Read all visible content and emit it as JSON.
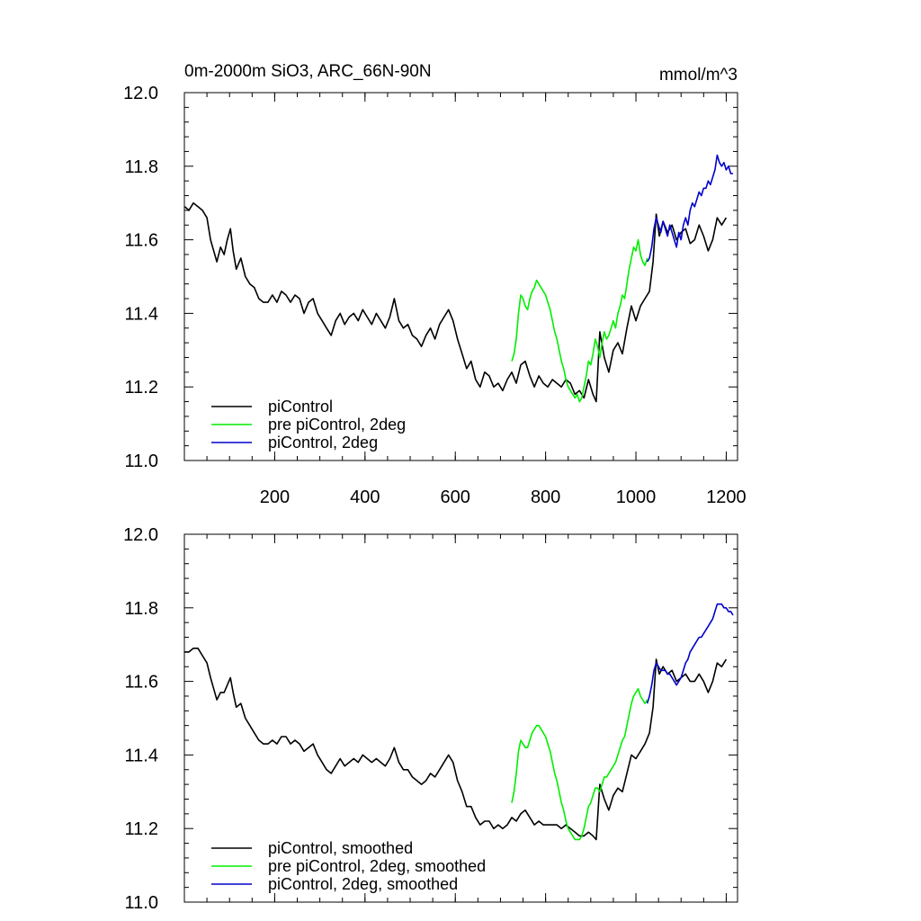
{
  "chart_data": [
    {
      "type": "line",
      "title": "0m-2000m SiO3, ARC_66N-90N",
      "units": "mmol/m^3",
      "xlabel": "",
      "ylabel": "",
      "xlim": [
        0,
        1225
      ],
      "ylim": [
        11.0,
        12.0
      ],
      "xticks": [
        200,
        400,
        600,
        800,
        1000,
        1200
      ],
      "xtick_labels": [
        "200",
        "400",
        "600",
        "800",
        "1000",
        "1200"
      ],
      "yticks": [
        11.0,
        11.2,
        11.4,
        11.6,
        11.8,
        12.0
      ],
      "ytick_labels": [
        "11.0",
        "11.2",
        "11.4",
        "11.6",
        "11.8",
        "12.0"
      ],
      "legend_position": "bottom-left",
      "series": [
        {
          "name": "piControl",
          "color": "#000000",
          "x": [
            1,
            10,
            20,
            30,
            40,
            50,
            58,
            65,
            72,
            80,
            88,
            95,
            102,
            108,
            115,
            125,
            135,
            145,
            155,
            165,
            175,
            185,
            195,
            205,
            215,
            225,
            235,
            245,
            255,
            265,
            275,
            285,
            295,
            305,
            315,
            325,
            335,
            345,
            355,
            365,
            375,
            385,
            395,
            405,
            415,
            425,
            435,
            445,
            455,
            465,
            475,
            485,
            495,
            505,
            515,
            525,
            535,
            545,
            555,
            565,
            575,
            585,
            595,
            605,
            615,
            625,
            635,
            645,
            655,
            665,
            675,
            685,
            695,
            705,
            715,
            725,
            735,
            745,
            755,
            765,
            775,
            785,
            795,
            805,
            815,
            825,
            835,
            845,
            855,
            865,
            875,
            885,
            895,
            905,
            912,
            920,
            930,
            940,
            950,
            960,
            970,
            980,
            990,
            1000,
            1010,
            1020,
            1030,
            1038,
            1045,
            1052,
            1060,
            1070,
            1080,
            1090,
            1100,
            1110,
            1120,
            1130,
            1140,
            1150,
            1160,
            1170,
            1180,
            1190,
            1200
          ],
          "values": [
            11.69,
            11.68,
            11.7,
            11.69,
            11.68,
            11.66,
            11.6,
            11.57,
            11.54,
            11.58,
            11.56,
            11.6,
            11.63,
            11.57,
            11.52,
            11.55,
            11.5,
            11.48,
            11.47,
            11.44,
            11.43,
            11.43,
            11.45,
            11.43,
            11.46,
            11.45,
            11.43,
            11.45,
            11.44,
            11.4,
            11.43,
            11.44,
            11.4,
            11.38,
            11.36,
            11.34,
            11.38,
            11.4,
            11.37,
            11.39,
            11.4,
            11.38,
            11.41,
            11.39,
            11.37,
            11.4,
            11.38,
            11.36,
            11.39,
            11.44,
            11.38,
            11.36,
            11.37,
            11.34,
            11.33,
            11.31,
            11.34,
            11.36,
            11.33,
            11.37,
            11.39,
            11.41,
            11.38,
            11.33,
            11.29,
            11.25,
            11.27,
            11.22,
            11.2,
            11.24,
            11.23,
            11.2,
            11.21,
            11.19,
            11.22,
            11.24,
            11.21,
            11.26,
            11.27,
            11.23,
            11.2,
            11.23,
            11.21,
            11.2,
            11.22,
            11.21,
            11.2,
            11.22,
            11.21,
            11.18,
            11.19,
            11.17,
            11.22,
            11.18,
            11.16,
            11.35,
            11.28,
            11.24,
            11.3,
            11.32,
            11.29,
            11.36,
            11.42,
            11.38,
            11.42,
            11.44,
            11.46,
            11.54,
            11.67,
            11.61,
            11.65,
            11.62,
            11.64,
            11.6,
            11.62,
            11.63,
            11.59,
            11.6,
            11.64,
            11.61,
            11.57,
            11.6,
            11.66,
            11.64,
            11.66
          ]
        },
        {
          "name": "pre piControl, 2deg",
          "color": "#00ee00",
          "x": [
            725,
            730,
            735,
            740,
            745,
            750,
            755,
            760,
            765,
            770,
            775,
            780,
            785,
            790,
            795,
            800,
            805,
            810,
            815,
            820,
            825,
            830,
            835,
            840,
            845,
            850,
            855,
            860,
            865,
            870,
            875,
            880,
            885,
            890,
            895,
            900,
            905,
            910,
            915,
            920,
            925,
            930,
            935,
            940,
            945,
            950,
            955,
            960,
            965,
            970,
            975,
            980,
            985,
            990,
            995,
            1000,
            1005,
            1010,
            1015,
            1020,
            1025
          ],
          "values": [
            11.27,
            11.29,
            11.33,
            11.4,
            11.45,
            11.44,
            11.42,
            11.41,
            11.44,
            11.46,
            11.47,
            11.49,
            11.48,
            11.47,
            11.46,
            11.45,
            11.43,
            11.41,
            11.38,
            11.35,
            11.33,
            11.3,
            11.27,
            11.25,
            11.22,
            11.2,
            11.19,
            11.18,
            11.17,
            11.18,
            11.16,
            11.17,
            11.2,
            11.23,
            11.27,
            11.26,
            11.29,
            11.33,
            11.31,
            11.28,
            11.32,
            11.35,
            11.33,
            11.34,
            11.36,
            11.38,
            11.36,
            11.4,
            11.42,
            11.45,
            11.44,
            11.48,
            11.52,
            11.55,
            11.58,
            11.57,
            11.6,
            11.56,
            11.54,
            11.53,
            11.55
          ]
        },
        {
          "name": "piControl, 2deg",
          "color": "#0000cc",
          "x": [
            1025,
            1030,
            1035,
            1040,
            1045,
            1050,
            1055,
            1060,
            1065,
            1070,
            1075,
            1080,
            1085,
            1090,
            1095,
            1100,
            1105,
            1110,
            1115,
            1120,
            1125,
            1130,
            1135,
            1140,
            1145,
            1150,
            1155,
            1160,
            1165,
            1170,
            1175,
            1180,
            1185,
            1190,
            1195,
            1200,
            1205,
            1210,
            1215
          ],
          "values": [
            11.54,
            11.55,
            11.58,
            11.63,
            11.66,
            11.64,
            11.62,
            11.65,
            11.63,
            11.61,
            11.64,
            11.62,
            11.6,
            11.58,
            11.62,
            11.6,
            11.64,
            11.66,
            11.64,
            11.68,
            11.7,
            11.69,
            11.71,
            11.73,
            11.72,
            11.74,
            11.74,
            11.76,
            11.75,
            11.77,
            11.79,
            11.83,
            11.81,
            11.8,
            11.81,
            11.79,
            11.8,
            11.78,
            11.78
          ]
        }
      ]
    },
    {
      "type": "line",
      "title": "",
      "xlabel": "",
      "ylabel": "",
      "xlim": [
        0,
        1225
      ],
      "ylim": [
        11.0,
        12.0
      ],
      "xticks": [
        200,
        400,
        600,
        800,
        1000,
        1200
      ],
      "yticks": [
        11.0,
        11.2,
        11.4,
        11.6,
        11.8,
        12.0
      ],
      "ytick_labels": [
        "11.0",
        "11.2",
        "11.4",
        "11.6",
        "11.8",
        "12.0"
      ],
      "legend_position": "bottom-left",
      "series": [
        {
          "name": "piControl, smoothed",
          "color": "#000000",
          "x": [
            1,
            10,
            20,
            30,
            40,
            50,
            58,
            65,
            72,
            80,
            88,
            95,
            102,
            108,
            115,
            125,
            135,
            145,
            155,
            165,
            175,
            185,
            195,
            205,
            215,
            225,
            235,
            245,
            255,
            265,
            275,
            285,
            295,
            305,
            315,
            325,
            335,
            345,
            355,
            365,
            375,
            385,
            395,
            405,
            415,
            425,
            435,
            445,
            455,
            465,
            475,
            485,
            495,
            505,
            515,
            525,
            535,
            545,
            555,
            565,
            575,
            585,
            595,
            605,
            615,
            625,
            635,
            645,
            655,
            665,
            675,
            685,
            695,
            705,
            715,
            725,
            735,
            745,
            755,
            765,
            775,
            785,
            795,
            805,
            815,
            825,
            835,
            845,
            855,
            865,
            875,
            885,
            895,
            905,
            912,
            920,
            930,
            940,
            950,
            960,
            970,
            980,
            990,
            1000,
            1010,
            1020,
            1030,
            1038,
            1045,
            1052,
            1060,
            1070,
            1080,
            1090,
            1100,
            1110,
            1120,
            1130,
            1140,
            1150,
            1160,
            1170,
            1180,
            1190,
            1200
          ],
          "values": [
            11.68,
            11.68,
            11.69,
            11.69,
            11.67,
            11.65,
            11.61,
            11.58,
            11.55,
            11.57,
            11.57,
            11.59,
            11.61,
            11.57,
            11.53,
            11.54,
            11.5,
            11.48,
            11.46,
            11.44,
            11.43,
            11.43,
            11.44,
            11.43,
            11.45,
            11.45,
            11.43,
            11.44,
            11.43,
            11.41,
            11.42,
            11.43,
            11.4,
            11.38,
            11.36,
            11.35,
            11.37,
            11.39,
            11.37,
            11.38,
            11.39,
            11.38,
            11.4,
            11.39,
            11.38,
            11.39,
            11.38,
            11.37,
            11.39,
            11.42,
            11.38,
            11.36,
            11.36,
            11.34,
            11.33,
            11.32,
            11.33,
            11.35,
            11.34,
            11.36,
            11.38,
            11.4,
            11.38,
            11.33,
            11.3,
            11.26,
            11.26,
            11.23,
            11.21,
            11.22,
            11.22,
            11.2,
            11.21,
            11.2,
            11.21,
            11.23,
            11.22,
            11.24,
            11.25,
            11.23,
            11.21,
            11.22,
            11.21,
            11.21,
            11.21,
            11.21,
            11.2,
            11.21,
            11.2,
            11.19,
            11.18,
            11.18,
            11.19,
            11.18,
            11.17,
            11.32,
            11.28,
            11.25,
            11.29,
            11.31,
            11.3,
            11.35,
            11.4,
            11.39,
            11.41,
            11.43,
            11.46,
            11.53,
            11.66,
            11.62,
            11.64,
            11.62,
            11.63,
            11.6,
            11.61,
            11.62,
            11.6,
            11.6,
            11.62,
            11.6,
            11.57,
            11.6,
            11.65,
            11.64,
            11.66
          ]
        },
        {
          "name": "pre piControl, 2deg, smoothed",
          "color": "#00ee00",
          "x": [
            725,
            730,
            735,
            740,
            745,
            750,
            755,
            760,
            765,
            770,
            775,
            780,
            785,
            790,
            795,
            800,
            805,
            810,
            815,
            820,
            825,
            830,
            835,
            840,
            845,
            850,
            855,
            860,
            865,
            870,
            875,
            880,
            885,
            890,
            895,
            900,
            905,
            910,
            915,
            920,
            925,
            930,
            935,
            940,
            945,
            950,
            955,
            960,
            965,
            970,
            975,
            980,
            985,
            990,
            995,
            1000,
            1005,
            1010,
            1015,
            1020,
            1025
          ],
          "values": [
            11.27,
            11.3,
            11.35,
            11.41,
            11.44,
            11.43,
            11.42,
            11.42,
            11.44,
            11.46,
            11.47,
            11.48,
            11.48,
            11.47,
            11.46,
            11.45,
            11.43,
            11.41,
            11.38,
            11.35,
            11.33,
            11.3,
            11.27,
            11.25,
            11.22,
            11.2,
            11.19,
            11.18,
            11.17,
            11.17,
            11.17,
            11.18,
            11.2,
            11.23,
            11.26,
            11.27,
            11.29,
            11.31,
            11.31,
            11.3,
            11.32,
            11.34,
            11.34,
            11.35,
            11.36,
            11.37,
            11.38,
            11.4,
            11.42,
            11.44,
            11.45,
            11.48,
            11.51,
            11.54,
            11.56,
            11.57,
            11.58,
            11.56,
            11.55,
            11.54,
            11.55
          ]
        },
        {
          "name": "piControl, 2deg, smoothed",
          "color": "#0000cc",
          "x": [
            1025,
            1030,
            1035,
            1040,
            1045,
            1050,
            1055,
            1060,
            1065,
            1070,
            1075,
            1080,
            1085,
            1090,
            1095,
            1100,
            1105,
            1110,
            1115,
            1120,
            1125,
            1130,
            1135,
            1140,
            1145,
            1150,
            1155,
            1160,
            1165,
            1170,
            1175,
            1180,
            1185,
            1190,
            1195,
            1200,
            1205,
            1210,
            1215
          ],
          "values": [
            11.54,
            11.56,
            11.59,
            11.63,
            11.65,
            11.64,
            11.63,
            11.63,
            11.63,
            11.62,
            11.62,
            11.61,
            11.6,
            11.59,
            11.6,
            11.61,
            11.63,
            11.65,
            11.66,
            11.68,
            11.69,
            11.7,
            11.71,
            11.72,
            11.72,
            11.73,
            11.74,
            11.75,
            11.76,
            11.77,
            11.79,
            11.81,
            11.81,
            11.81,
            11.8,
            11.8,
            11.79,
            11.79,
            11.78
          ]
        }
      ]
    }
  ]
}
